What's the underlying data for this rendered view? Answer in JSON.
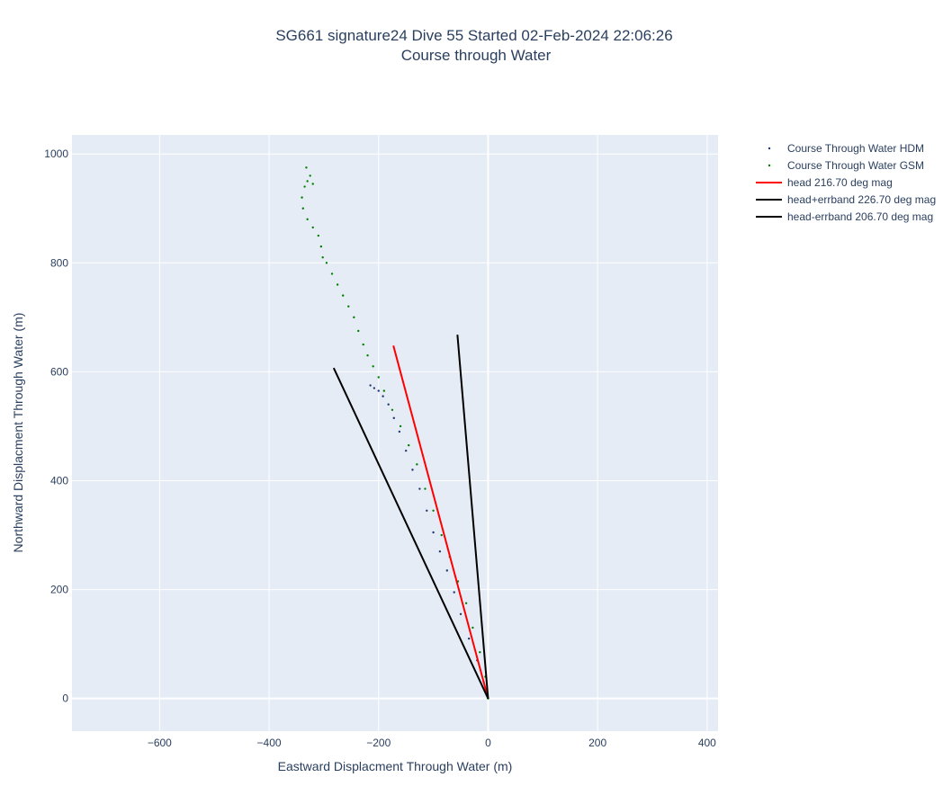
{
  "chart_data": {
    "type": "scatter",
    "title": "SG661 signature24 Dive 55 Started 02-Feb-2024 22:06:26",
    "subtitle": "Course through Water",
    "xlabel": "Eastward Displacment Through Water (m)",
    "ylabel": "Northward Displacment Through Water (m)",
    "xlim": [
      -760,
      420
    ],
    "ylim": [
      -60,
      1035
    ],
    "x_ticks": [
      -600,
      -400,
      -200,
      0,
      200,
      400
    ],
    "x_tick_labels": [
      "−600",
      "−400",
      "−200",
      "0",
      "200",
      "400"
    ],
    "y_ticks": [
      0,
      200,
      400,
      600,
      800,
      1000
    ],
    "y_tick_labels": [
      "0",
      "200",
      "400",
      "600",
      "800",
      "1000"
    ],
    "grid": true,
    "plot_bgcolor": "#e5ecf6",
    "legend_position": "right",
    "series": [
      {
        "name": "Course Through Water HDM",
        "mode": "markers",
        "color": "#1f3a73",
        "x": [
          0,
          -8,
          -20,
          -35,
          -50,
          -62,
          -75,
          -88,
          -100,
          -112,
          -125,
          -138,
          -150,
          -162,
          -172,
          -182,
          -192,
          -200,
          -208,
          -215
        ],
        "y": [
          0,
          30,
          70,
          110,
          155,
          195,
          235,
          270,
          305,
          345,
          385,
          420,
          455,
          490,
          515,
          540,
          555,
          565,
          570,
          575
        ]
      },
      {
        "name": "Course Through Water GSM",
        "mode": "markers",
        "color": "#008000",
        "x": [
          0,
          -5,
          -15,
          -28,
          -40,
          -55,
          -70,
          -85,
          -100,
          -115,
          -130,
          -145,
          -160,
          -175,
          -190,
          -200,
          -210,
          -220,
          -228,
          -237,
          -245,
          -255,
          -265,
          -275,
          -285,
          -295,
          -302,
          -305,
          -310,
          -320,
          -330,
          -338,
          -340,
          -335,
          -330,
          -325,
          -332,
          -320
        ],
        "y": [
          0,
          40,
          85,
          130,
          175,
          215,
          260,
          300,
          345,
          385,
          430,
          465,
          500,
          530,
          565,
          590,
          610,
          630,
          650,
          675,
          700,
          720,
          740,
          760,
          780,
          800,
          810,
          830,
          850,
          865,
          880,
          900,
          920,
          940,
          950,
          960,
          975,
          945
        ]
      },
      {
        "name": "head 216.70 deg mag",
        "mode": "lines",
        "color": "#ff0000",
        "x": [
          0,
          -173
        ],
        "y": [
          0,
          648
        ]
      },
      {
        "name": "head+errband 226.70 deg mag",
        "mode": "lines",
        "color": "#000000",
        "x": [
          0,
          -56
        ],
        "y": [
          0,
          668
        ]
      },
      {
        "name": "head-errband 206.70 deg mag",
        "mode": "lines",
        "color": "#000000",
        "x": [
          0,
          -282
        ],
        "y": [
          0,
          607
        ]
      }
    ]
  }
}
